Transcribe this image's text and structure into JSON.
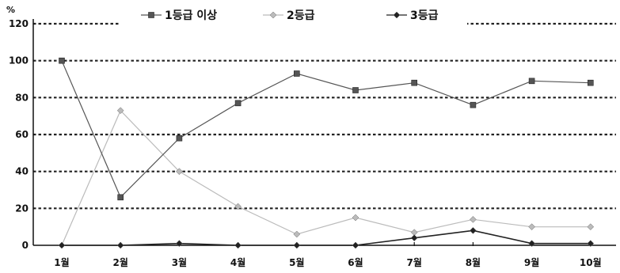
{
  "chart_data": {
    "type": "line",
    "y_unit": "%",
    "categories": [
      "1월",
      "2월",
      "3월",
      "4월",
      "5월",
      "6월",
      "7월",
      "8월",
      "9월",
      "10월"
    ],
    "ylim": [
      0,
      120
    ],
    "yticks": [
      0,
      20,
      40,
      60,
      80,
      100,
      120
    ],
    "grid": true,
    "legend_position": "top",
    "series": [
      {
        "name": "1등급 이상",
        "values": [
          100,
          26,
          58,
          77,
          93,
          84,
          88,
          76,
          89,
          88
        ],
        "color": "#555555",
        "marker": "square"
      },
      {
        "name": "2등급",
        "values": [
          0,
          73,
          40,
          21,
          6,
          15,
          7,
          14,
          10,
          10
        ],
        "color": "#bbbbbb",
        "marker": "diamond"
      },
      {
        "name": "3등급",
        "values": [
          0,
          0,
          1,
          0,
          0,
          0,
          4,
          8,
          1,
          1
        ],
        "color": "#222222",
        "marker": "diamond"
      }
    ]
  }
}
